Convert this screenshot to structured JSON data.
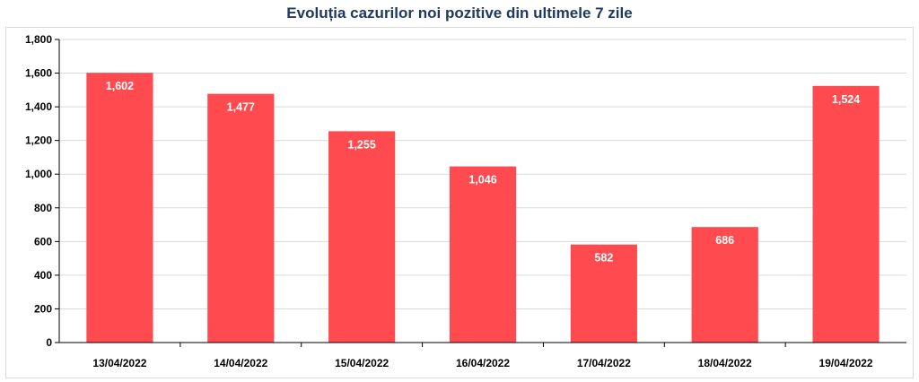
{
  "chart_data": {
    "type": "bar",
    "title": "Evoluția cazurilor noi pozitive din ultimele 7 zile",
    "categories": [
      "13/04/2022",
      "14/04/2022",
      "15/04/2022",
      "16/04/2022",
      "17/04/2022",
      "18/04/2022",
      "19/04/2022"
    ],
    "values": [
      1602,
      1477,
      1255,
      1046,
      582,
      686,
      1524
    ],
    "value_labels": [
      "1,602",
      "1,477",
      "1,255",
      "1,046",
      "582",
      "686",
      "1,524"
    ],
    "y_ticks": [
      "0",
      "200",
      "400",
      "600",
      "800",
      "1,000",
      "1,200",
      "1,400",
      "1,600",
      "1,800"
    ],
    "ylim": [
      0,
      1800
    ],
    "y_step": 200,
    "bar_color": "#FF4B4F",
    "title_color": "#1F3864",
    "grid": true,
    "legend": false
  }
}
